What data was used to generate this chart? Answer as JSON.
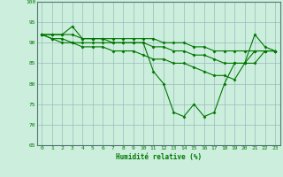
{
  "xlabel": "Humidité relative (%)",
  "background_color": "#cceedd",
  "grid_color": "#99bbbb",
  "line_color": "#007700",
  "ylim": [
    65,
    100
  ],
  "xlim": [
    -0.5,
    23.5
  ],
  "yticks": [
    65,
    70,
    75,
    80,
    85,
    90,
    95,
    100
  ],
  "xticks": [
    0,
    1,
    2,
    3,
    4,
    5,
    6,
    7,
    8,
    9,
    10,
    11,
    12,
    13,
    14,
    15,
    16,
    17,
    18,
    19,
    20,
    21,
    22,
    23
  ],
  "series": [
    [
      92,
      92,
      92,
      94,
      91,
      91,
      91,
      90,
      90,
      90,
      90,
      83,
      80,
      73,
      72,
      75,
      72,
      73,
      80,
      85,
      85,
      92,
      89,
      88
    ],
    [
      92,
      92,
      92,
      92,
      91,
      91,
      91,
      91,
      91,
      91,
      91,
      91,
      90,
      90,
      90,
      89,
      89,
      88,
      88,
      88,
      88,
      88,
      88,
      88
    ],
    [
      92,
      91,
      91,
      90,
      90,
      90,
      90,
      90,
      90,
      90,
      90,
      89,
      89,
      88,
      88,
      87,
      87,
      86,
      85,
      85,
      85,
      85,
      88,
      88
    ],
    [
      92,
      91,
      90,
      90,
      89,
      89,
      89,
      88,
      88,
      88,
      87,
      86,
      86,
      85,
      85,
      84,
      83,
      82,
      82,
      81,
      85,
      88,
      88,
      88
    ]
  ]
}
